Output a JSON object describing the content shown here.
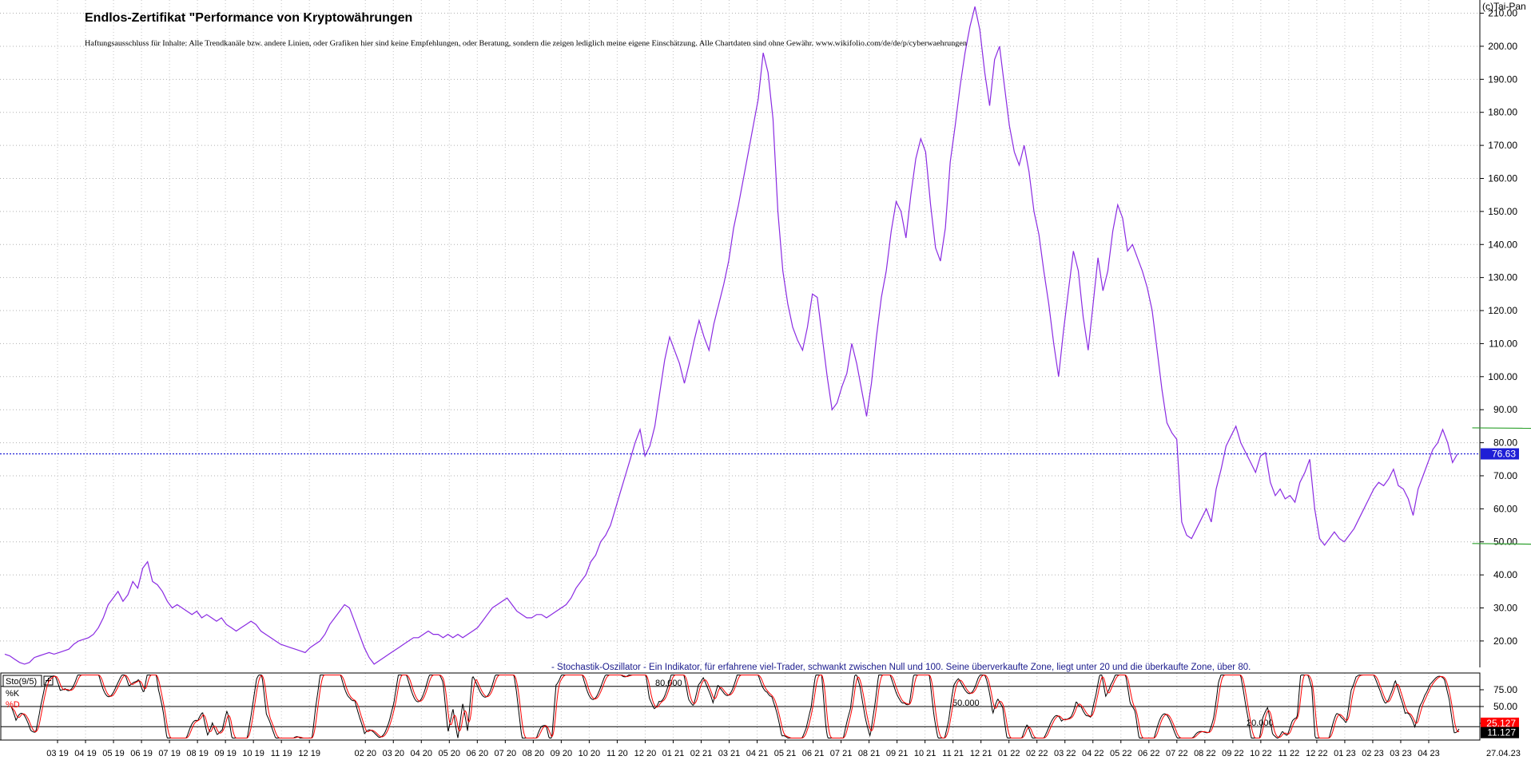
{
  "chart_data": [
    {
      "type": "line",
      "title": "Endlos-Zertifikat \"Performance von Kryptowährungen",
      "subtitle": "Haftungsausschluss für Inhalte: Alle Trendkanäle bzw. andere Linien, oder Grafiken hier sind keine Empfehlungen, oder Beratung, sondern die zeigen lediglich meine eigene Einschätzung. Alle Chartdaten sind ohne Gewähr. www.wikifolio.com/de/de/p/cyberwaehrungen",
      "watermark": "(c)Tai-Pan",
      "ylim": [
        12,
        214
      ],
      "yticks": [
        "20.00",
        "30.00",
        "40.00",
        "50.00",
        "60.00",
        "70.00",
        "80.00",
        "90.00",
        "100.00",
        "110.00",
        "120.00",
        "130.00",
        "140.00",
        "150.00",
        "160.00",
        "170.00",
        "180.00",
        "190.00",
        "200.00",
        "210.00"
      ],
      "xticks": [
        "03 19",
        "04 19",
        "05 19",
        "06 19",
        "07 19",
        "08 19",
        "09 19",
        "10 19",
        "11 19",
        "12 19",
        "02 20",
        "03 20",
        "04 20",
        "05 20",
        "06 20",
        "07 20",
        "08 20",
        "09 20",
        "10 20",
        "11 20",
        "12 20",
        "01 21",
        "02 21",
        "03 21",
        "04 21",
        "05 21",
        "06 21",
        "07 21",
        "08 21",
        "09 21",
        "10 21",
        "11 21",
        "12 21",
        "01 22",
        "02 22",
        "03 22",
        "04 22",
        "05 22",
        "06 22",
        "07 22",
        "08 22",
        "09 22",
        "10 22",
        "11 22",
        "12 22",
        "01 23",
        "02 23",
        "03 23",
        "04 23"
      ],
      "last_date": "27.04.23",
      "current_value": "76.63",
      "current_value_num": 76.63,
      "line_color": "#8a2be2",
      "series": [
        {
          "values": [
            16,
            15.5,
            14.5,
            13.5,
            13,
            13.5,
            15,
            15.5,
            16,
            16.5,
            16,
            16.5,
            17,
            17.5,
            19,
            20,
            20.5,
            21,
            22,
            24,
            27,
            31,
            33,
            35,
            32,
            34,
            38,
            36,
            42,
            44,
            38,
            37,
            35,
            32,
            30,
            31,
            30,
            29,
            28,
            29,
            27,
            28,
            27,
            26,
            27,
            25,
            24,
            23,
            24,
            25,
            26,
            25,
            23,
            22,
            21,
            20,
            19,
            18.5,
            18,
            17.5,
            17,
            16.5,
            18,
            19,
            20,
            22,
            25,
            27,
            29,
            31,
            30,
            26,
            22,
            18,
            15,
            13,
            14,
            15,
            16,
            17,
            18,
            19,
            20,
            21,
            21,
            22,
            23,
            22,
            22,
            21,
            22,
            21,
            22,
            21,
            22,
            23,
            24,
            26,
            28,
            30,
            31,
            32,
            33,
            31,
            29,
            28,
            27,
            27,
            28,
            28,
            27,
            28,
            29,
            30,
            31,
            33,
            36,
            38,
            40,
            44,
            46,
            50,
            52,
            55,
            60,
            65,
            70,
            75,
            80,
            84,
            76,
            79,
            85,
            95,
            105,
            112,
            108,
            104,
            98,
            104,
            111,
            117,
            112,
            108,
            116,
            122,
            128,
            135,
            145,
            152,
            160,
            168,
            176,
            184,
            198,
            192,
            178,
            150,
            132,
            122,
            115,
            111,
            108,
            115,
            125,
            124,
            112,
            100,
            90,
            92,
            97,
            101,
            110,
            104,
            96,
            88,
            98,
            112,
            124,
            132,
            144,
            153,
            150,
            142,
            155,
            166,
            172,
            168,
            152,
            139,
            135,
            145,
            165,
            176,
            188,
            198,
            206,
            212,
            205,
            192,
            182,
            196,
            200,
            188,
            176,
            168,
            164,
            170,
            162,
            150,
            143,
            132,
            122,
            110,
            100,
            114,
            126,
            138,
            132,
            118,
            108,
            122,
            136,
            126,
            132,
            144,
            152,
            148,
            138,
            140,
            136,
            132,
            127,
            120,
            108,
            96,
            86,
            83,
            81,
            56,
            52,
            51,
            54,
            57,
            60,
            56,
            66,
            72,
            79,
            82,
            85,
            80,
            77,
            74,
            71,
            76,
            77,
            68,
            64,
            66,
            63,
            64,
            62,
            68,
            71,
            75,
            60,
            51,
            49,
            51,
            53,
            51,
            50,
            52,
            54,
            57,
            60,
            63,
            66,
            68,
            67,
            69,
            72,
            67,
            66,
            63,
            58,
            66,
            70,
            74,
            78,
            80,
            84,
            80,
            74,
            76.63
          ]
        }
      ],
      "trendlines": [
        {
          "color": "#2ca02c",
          "from": [
            298,
            84.5
          ],
          "to": [
            388,
            83.5
          ]
        },
        {
          "color": "#2ca02c",
          "from": [
            298,
            49.5
          ],
          "to": [
            388,
            48
          ]
        }
      ]
    },
    {
      "type": "line",
      "title": "- Stochastik-Oszillator - Ein Indikator, für erfahrene viel-Trader, schwankt zwischen Null und 100. Seine überverkaufte Zone, liegt unter 20 und die überkaufte Zone, über 80.",
      "legend": [
        "Sto(9/5)",
        "%K",
        "%D"
      ],
      "ylim": [
        0,
        100
      ],
      "yticks": [
        "25.00",
        "50.00",
        "75.00"
      ],
      "levels": [
        "80.000",
        "50.000",
        "20.000"
      ],
      "current_k": "25.127",
      "current_d": "11.127",
      "colors": {
        "k": "#000000",
        "d": "#ff0000",
        "k_badge": "#ff0000",
        "d_badge": "#000000"
      }
    }
  ]
}
